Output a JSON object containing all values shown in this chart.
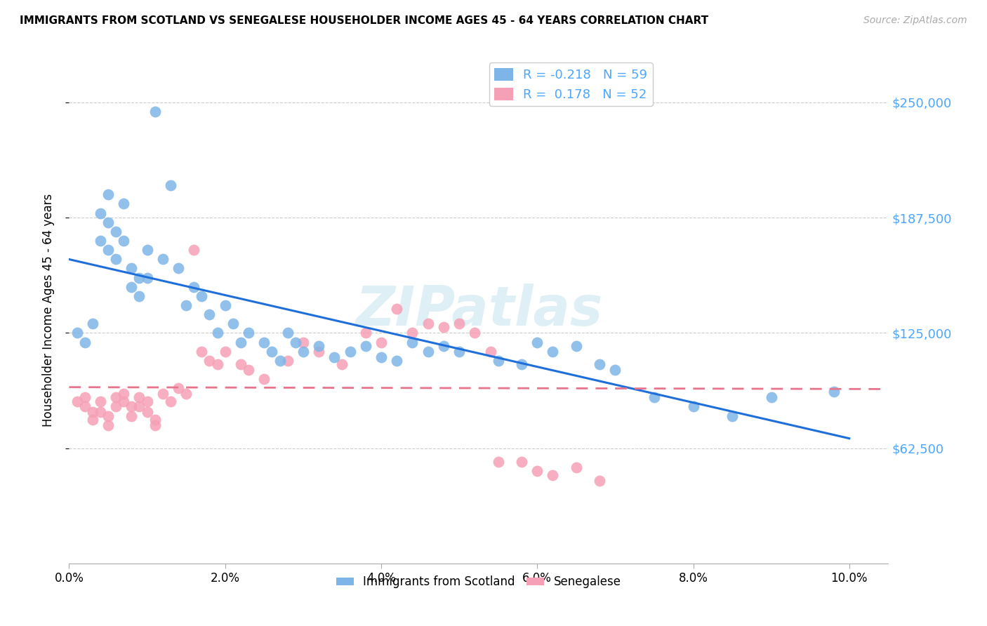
{
  "title": "IMMIGRANTS FROM SCOTLAND VS SENEGALESE HOUSEHOLDER INCOME AGES 45 - 64 YEARS CORRELATION CHART",
  "source": "Source: ZipAtlas.com",
  "ylabel": "Householder Income Ages 45 - 64 years",
  "xlabel_ticks": [
    "0.0%",
    "2.0%",
    "4.0%",
    "6.0%",
    "8.0%",
    "10.0%"
  ],
  "xlabel_vals": [
    0.0,
    0.02,
    0.04,
    0.06,
    0.08,
    0.1
  ],
  "ytick_labels": [
    "$62,500",
    "$125,000",
    "$187,500",
    "$250,000"
  ],
  "ytick_vals": [
    62500,
    125000,
    187500,
    250000
  ],
  "xlim": [
    0.0,
    0.105
  ],
  "ylim": [
    0,
    275000
  ],
  "legend1_label": "R = -0.218   N = 59",
  "legend2_label": "R =  0.178   N = 52",
  "legend_xlabel": "Immigrants from Scotland",
  "legend_ylabel": "Senegalese",
  "scotland_color": "#7EB5E8",
  "senegal_color": "#F5A0B5",
  "scotland_line_color": "#1E6FD9",
  "senegal_line_color": "#E8748C",
  "watermark": "ZIPatlas",
  "scotland_x": [
    0.001,
    0.002,
    0.003,
    0.004,
    0.004,
    0.005,
    0.005,
    0.005,
    0.006,
    0.006,
    0.007,
    0.007,
    0.008,
    0.008,
    0.009,
    0.009,
    0.01,
    0.01,
    0.011,
    0.012,
    0.013,
    0.014,
    0.015,
    0.016,
    0.017,
    0.018,
    0.019,
    0.02,
    0.021,
    0.022,
    0.023,
    0.025,
    0.026,
    0.027,
    0.028,
    0.029,
    0.03,
    0.032,
    0.034,
    0.036,
    0.038,
    0.04,
    0.042,
    0.044,
    0.046,
    0.048,
    0.05,
    0.055,
    0.058,
    0.06,
    0.062,
    0.065,
    0.068,
    0.07,
    0.075,
    0.08,
    0.085,
    0.09,
    0.098
  ],
  "scotland_y": [
    125000,
    120000,
    130000,
    190000,
    175000,
    200000,
    185000,
    170000,
    180000,
    165000,
    195000,
    175000,
    160000,
    150000,
    155000,
    145000,
    170000,
    155000,
    245000,
    165000,
    205000,
    160000,
    140000,
    150000,
    145000,
    135000,
    125000,
    140000,
    130000,
    120000,
    125000,
    120000,
    115000,
    110000,
    125000,
    120000,
    115000,
    118000,
    112000,
    115000,
    118000,
    112000,
    110000,
    120000,
    115000,
    118000,
    115000,
    110000,
    108000,
    120000,
    115000,
    118000,
    108000,
    105000,
    90000,
    85000,
    80000,
    90000,
    93000
  ],
  "senegal_x": [
    0.001,
    0.002,
    0.002,
    0.003,
    0.003,
    0.004,
    0.004,
    0.005,
    0.005,
    0.006,
    0.006,
    0.007,
    0.007,
    0.008,
    0.008,
    0.009,
    0.009,
    0.01,
    0.01,
    0.011,
    0.011,
    0.012,
    0.013,
    0.014,
    0.015,
    0.016,
    0.017,
    0.018,
    0.019,
    0.02,
    0.022,
    0.023,
    0.025,
    0.028,
    0.03,
    0.032,
    0.035,
    0.038,
    0.04,
    0.042,
    0.044,
    0.046,
    0.048,
    0.05,
    0.052,
    0.054,
    0.055,
    0.058,
    0.06,
    0.062,
    0.065,
    0.068
  ],
  "senegal_y": [
    88000,
    90000,
    85000,
    82000,
    78000,
    88000,
    82000,
    80000,
    75000,
    90000,
    85000,
    92000,
    88000,
    85000,
    80000,
    90000,
    85000,
    88000,
    82000,
    78000,
    75000,
    92000,
    88000,
    95000,
    92000,
    170000,
    115000,
    110000,
    108000,
    115000,
    108000,
    105000,
    100000,
    110000,
    120000,
    115000,
    108000,
    125000,
    120000,
    138000,
    125000,
    130000,
    128000,
    130000,
    125000,
    115000,
    55000,
    55000,
    50000,
    48000,
    52000,
    45000
  ]
}
